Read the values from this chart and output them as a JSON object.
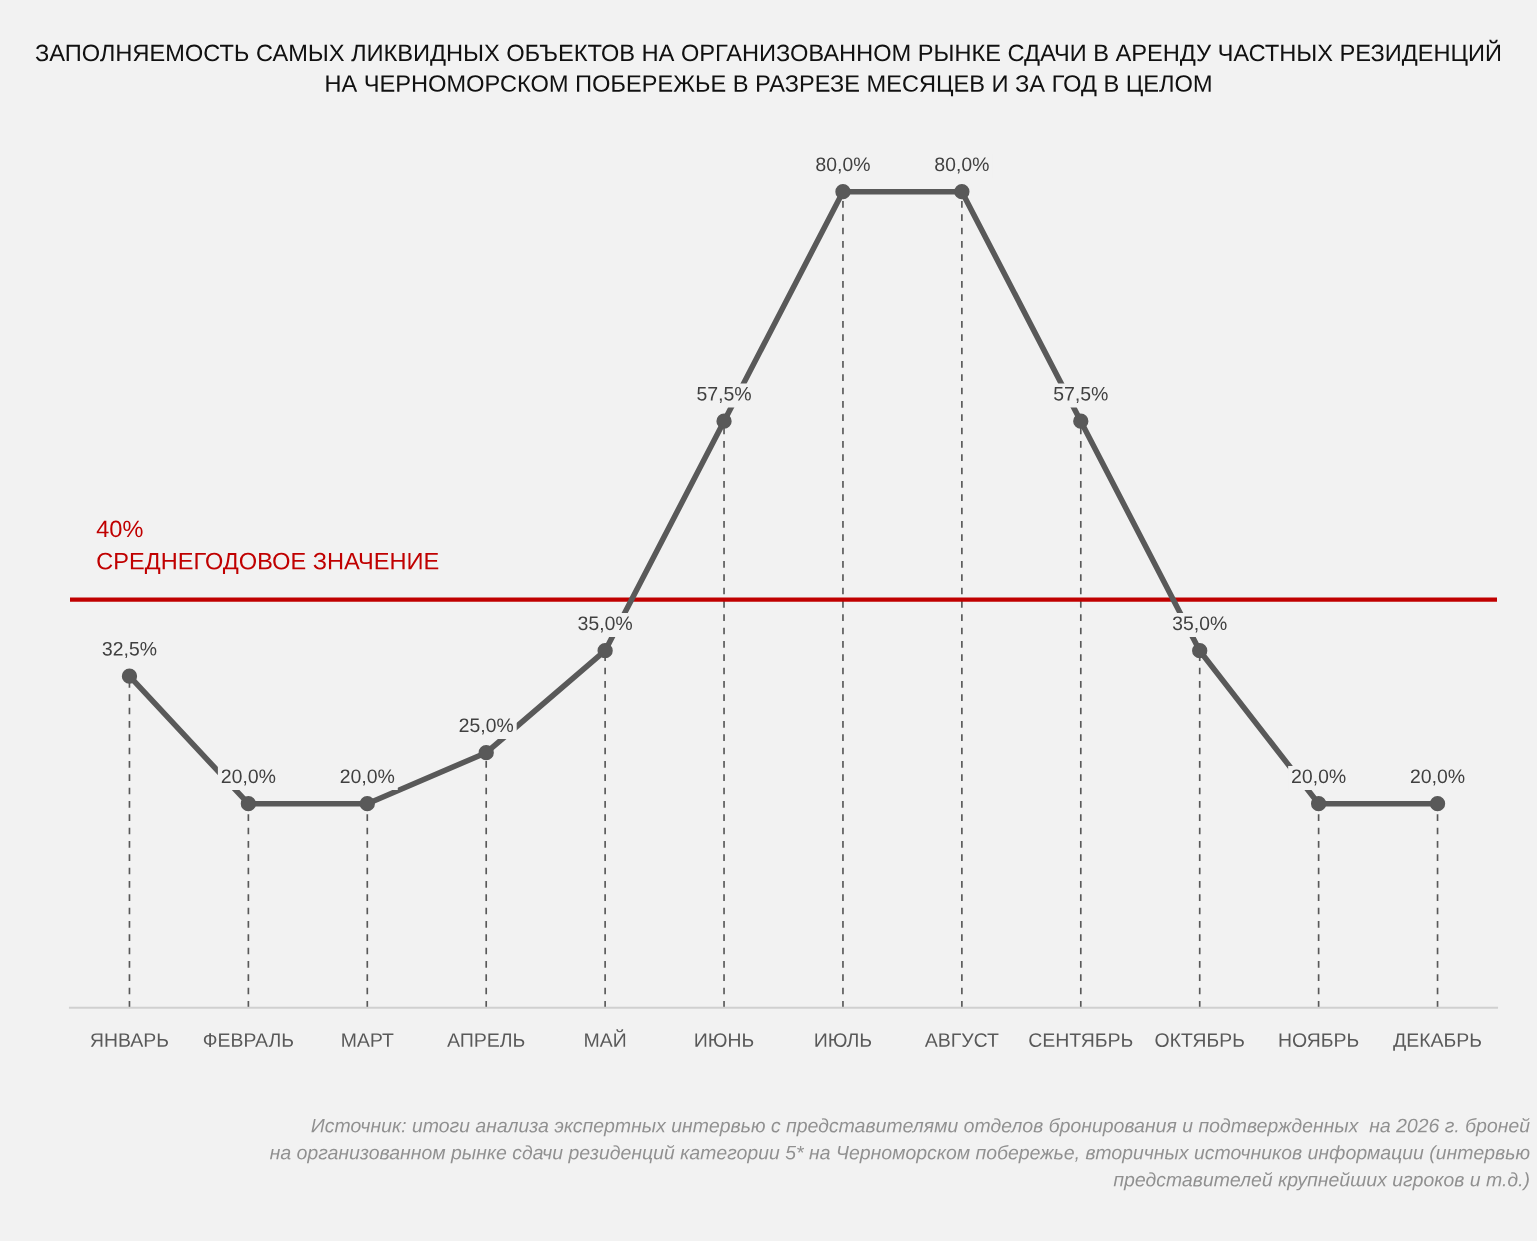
{
  "chart_data": {
    "type": "line",
    "title": "ЗАПОЛНЯЕМОСТЬ САМЫХ ЛИКВИДНЫХ ОБЪЕКТОВ НА ОРГАНИЗОВАННОМ РЫНКЕ СДАЧИ В АРЕНДУ ЧАСТНЫХ РЕЗИДЕНЦИЙ\nНА ЧЕРНОМОРСКОМ ПОБЕРЕЖЬЕ В РАЗРЕЗЕ МЕСЯЦЕВ И ЗА ГОД В ЦЕЛОМ",
    "categories": [
      "ЯНВАРЬ",
      "ФЕВРАЛЬ",
      "МАРТ",
      "АПРЕЛЬ",
      "МАЙ",
      "ИЮНЬ",
      "ИЮЛЬ",
      "АВГУСТ",
      "СЕНТЯБРЬ",
      "ОКТЯБРЬ",
      "НОЯБРЬ",
      "ДЕКАБРЬ"
    ],
    "series": [
      {
        "color": "#595959",
        "values": [
          32.5,
          20,
          20,
          25,
          35,
          57.5,
          80,
          80,
          57.5,
          35,
          20,
          20
        ],
        "value_labels": [
          "32,5%",
          "20,0%",
          "20,0%",
          "25,0%",
          "35,0%",
          "57,5%",
          "80,0%",
          "80,0%",
          "57,5%",
          "35,0%",
          "20,0%",
          "20,0%"
        ]
      }
    ],
    "ylim": [
      0,
      80
    ],
    "marker": "circle",
    "line_style": "solid",
    "grid": "x",
    "legend": false,
    "tick_labels": "x",
    "ref_lines": [
      {
        "axis": "y",
        "value": 40,
        "label": "40%\nСРЕДНЕГОДОВОЕ ЗНАЧЕНИЕ",
        "color": "#c00000",
        "line_style": "solid"
      }
    ],
    "annotations": [
      "Источник: итоги анализа экспертных интервью с представителями отделов бронирования и подтвержденных  на 2026 г. броней\nна организованном рынке сдачи резиденций категории 5* на Черноморском побережье, вторичных источников информации (интервью\nпредставителей крупнейших игроков и т.д.)"
    ]
  }
}
